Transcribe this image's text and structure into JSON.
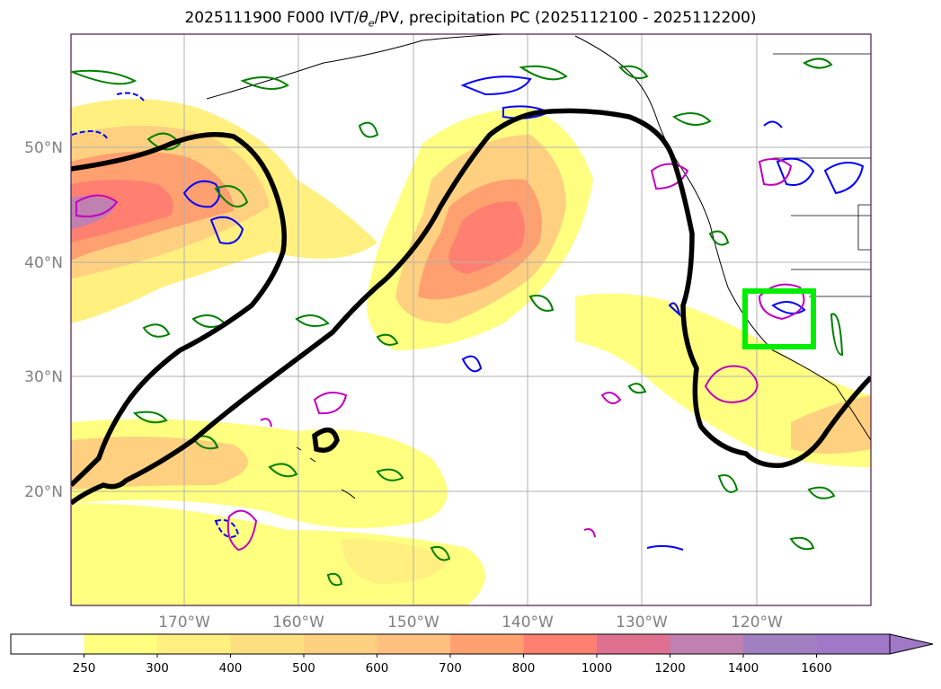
{
  "title_main": "2025111900 F000 IVT/",
  "title_theta": "θ",
  "title_sub": "e",
  "title_rest": "/PV, precipitation PC (2025112100 - 2025112200)",
  "map": {
    "lat_ticks": [
      "50°N",
      "40°N",
      "30°N",
      "20°N"
    ],
    "lon_ticks": [
      "170°W",
      "160°W",
      "150°W",
      "140°W",
      "130°W",
      "120°W"
    ],
    "colors": {
      "pv_contour": "#0000ff",
      "theta_contour": "#008000",
      "precip_contour": "#c000c0",
      "jet_contour": "#000000",
      "region_box": "#00ee00",
      "coastline": "#000000",
      "gridline": "#b0b0b0"
    }
  },
  "colorbar": {
    "levels": [
      "250",
      "300",
      "400",
      "500",
      "600",
      "700",
      "800",
      "1000",
      "1200",
      "1400",
      "1600"
    ],
    "colors": [
      "#ffffff",
      "#ffff80",
      "#fff080",
      "#ffe080",
      "#ffd080",
      "#ffc080",
      "#ffa070",
      "#ff8070",
      "#e07090",
      "#c080b0",
      "#a080c0",
      "#a078c8"
    ],
    "extend": "max"
  }
}
